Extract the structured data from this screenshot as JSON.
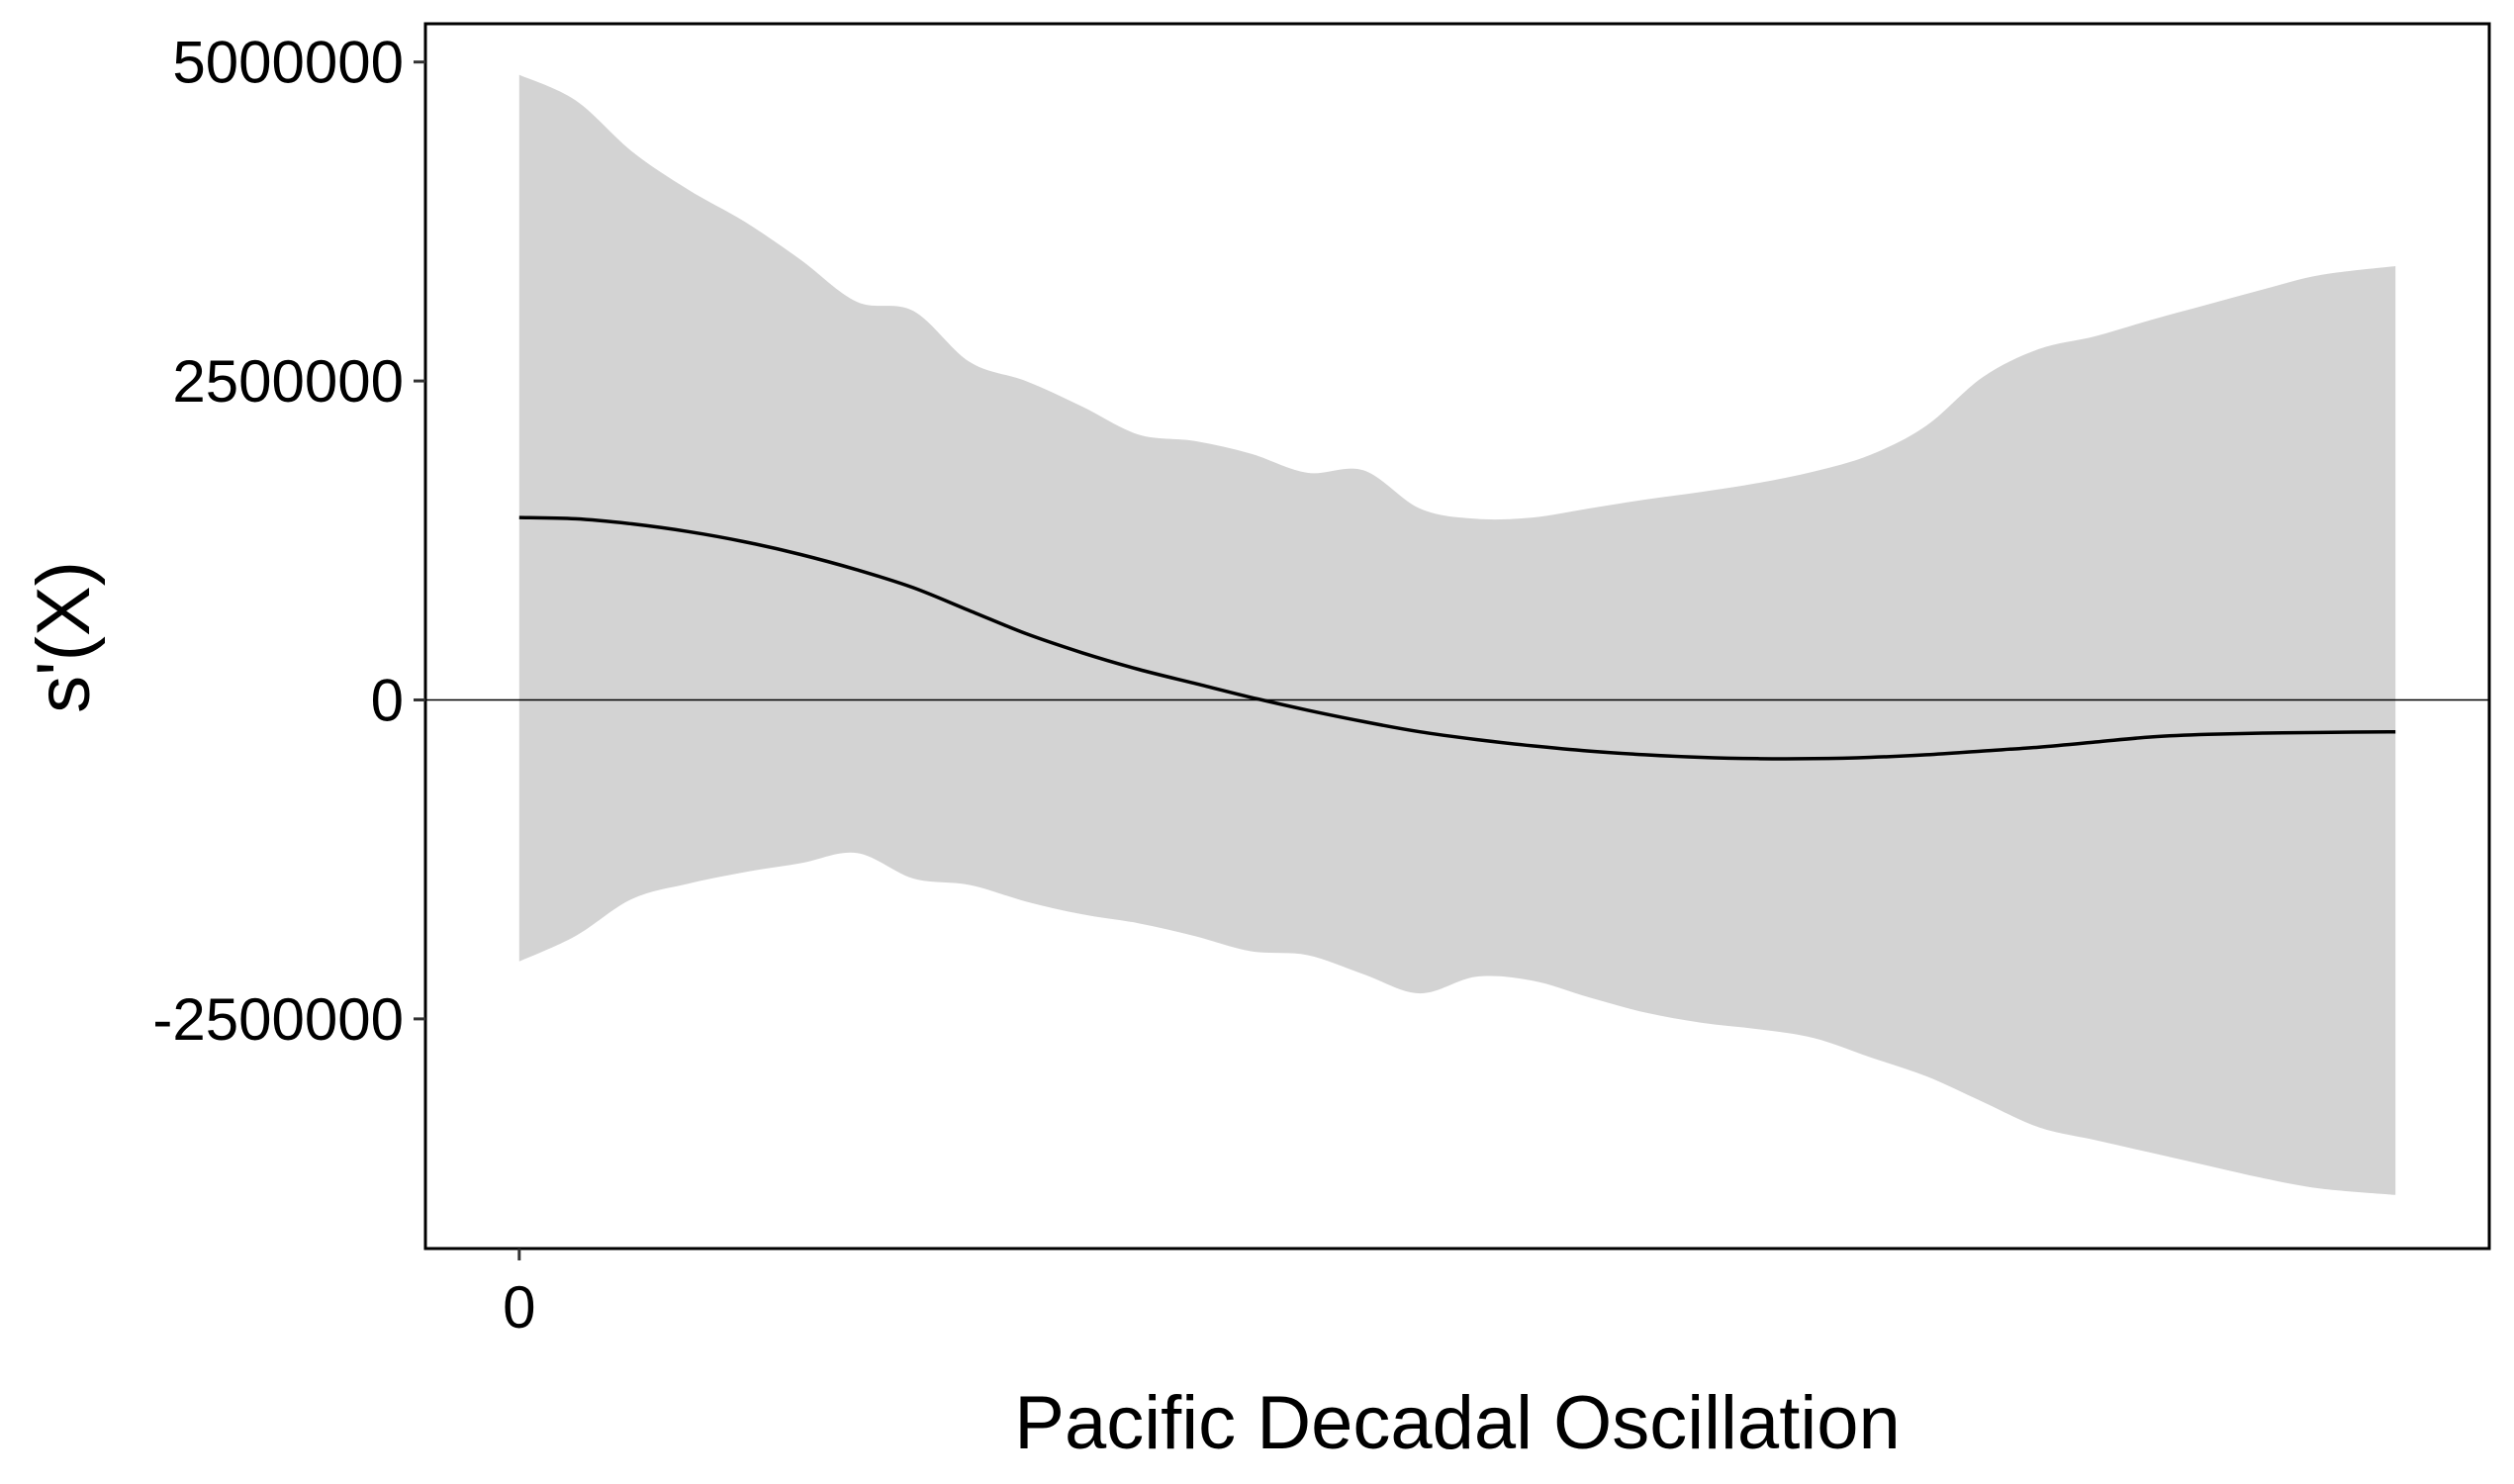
{
  "chart_data": {
    "type": "area",
    "title": "",
    "xlabel": "Pacific Decadal Oscillation",
    "ylabel": "s'(X)",
    "x_ticks": [
      {
        "value": 0,
        "label": "0"
      }
    ],
    "y_ticks": [
      {
        "value": 5000000,
        "label": "5000000"
      },
      {
        "value": 2500000,
        "label": "2500000"
      },
      {
        "value": 0,
        "label": "0"
      },
      {
        "value": -2500000,
        "label": "-2500000"
      }
    ],
    "xlim": [
      -0.05,
      1.05
    ],
    "ylim": [
      -4300000,
      5300000
    ],
    "grid": false,
    "reference_line_y": 0,
    "x": [
      0.0,
      0.03,
      0.06,
      0.09,
      0.12,
      0.15,
      0.18,
      0.21,
      0.24,
      0.27,
      0.3,
      0.33,
      0.36,
      0.39,
      0.42,
      0.45,
      0.48,
      0.51,
      0.54,
      0.57,
      0.6,
      0.63,
      0.66,
      0.69,
      0.72,
      0.75,
      0.78,
      0.81,
      0.84,
      0.87,
      0.9,
      0.93,
      0.96,
      1.0
    ],
    "series": [
      {
        "role": "estimate",
        "values": [
          1430000,
          1420000,
          1380000,
          1320000,
          1240000,
          1140000,
          1020000,
          880000,
          700000,
          520000,
          370000,
          240000,
          130000,
          20000,
          -80000,
          -170000,
          -250000,
          -310000,
          -360000,
          -400000,
          -430000,
          -450000,
          -460000,
          -460000,
          -450000,
          -430000,
          -400000,
          -370000,
          -330000,
          -290000,
          -270000,
          -260000,
          -255000,
          -250000
        ],
        "color": "#000000"
      },
      {
        "role": "upper_bound",
        "values": [
          4900000,
          4700000,
          4300000,
          4000000,
          3750000,
          3450000,
          3120000,
          3050000,
          2650000,
          2500000,
          2300000,
          2080000,
          2030000,
          1930000,
          1780000,
          1800000,
          1500000,
          1420000,
          1430000,
          1500000,
          1570000,
          1630000,
          1700000,
          1790000,
          1920000,
          2150000,
          2530000,
          2750000,
          2850000,
          2980000,
          3100000,
          3220000,
          3330000,
          3400000
        ],
        "color": "#d3d3d3"
      },
      {
        "role": "lower_bound",
        "values": [
          -2050000,
          -1850000,
          -1560000,
          -1440000,
          -1350000,
          -1280000,
          -1200000,
          -1400000,
          -1450000,
          -1580000,
          -1680000,
          -1750000,
          -1850000,
          -1970000,
          -2000000,
          -2150000,
          -2300000,
          -2170000,
          -2200000,
          -2330000,
          -2450000,
          -2530000,
          -2580000,
          -2650000,
          -2800000,
          -2950000,
          -3150000,
          -3350000,
          -3450000,
          -3550000,
          -3650000,
          -3750000,
          -3830000,
          -3880000
        ],
        "color": "#d3d3d3"
      }
    ]
  }
}
